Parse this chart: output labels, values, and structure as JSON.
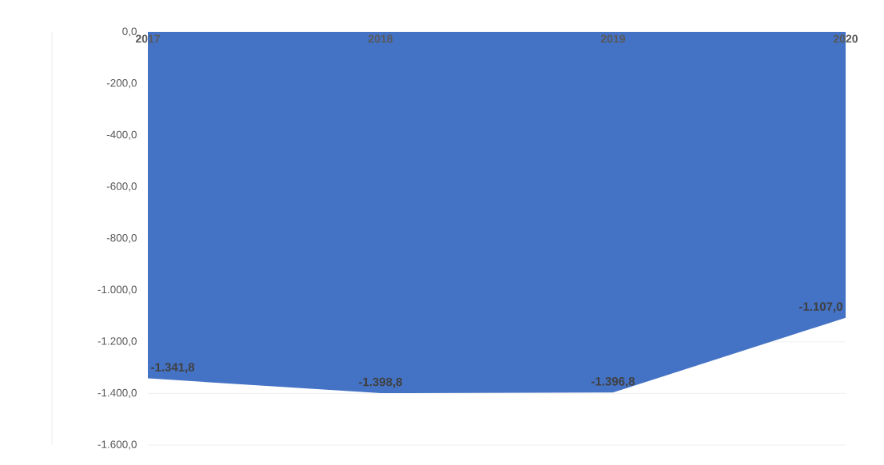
{
  "chart_data": {
    "type": "area",
    "categories": [
      "2017",
      "2018",
      "2019",
      "2020"
    ],
    "values": [
      -1341.8,
      -1398.8,
      -1396.8,
      -1107.0
    ],
    "value_labels": [
      "-1.341,8",
      "-1.398,8",
      "-1.396,8",
      "-1.107,0"
    ],
    "color": "#4472c4",
    "ylim": [
      -1600,
      0
    ],
    "yticks": [
      {
        "value": 0,
        "label": "0,0"
      },
      {
        "value": -200,
        "label": "-200,0"
      },
      {
        "value": -400,
        "label": "-400,0"
      },
      {
        "value": -600,
        "label": "-600,0"
      },
      {
        "value": -800,
        "label": "-800,0"
      },
      {
        "value": -1000,
        "label": "-1.000,0"
      },
      {
        "value": -1200,
        "label": "-1.200,0"
      },
      {
        "value": -1400,
        "label": "-1.400,0"
      },
      {
        "value": -1600,
        "label": "-1.600,0"
      }
    ],
    "grid": "y"
  }
}
